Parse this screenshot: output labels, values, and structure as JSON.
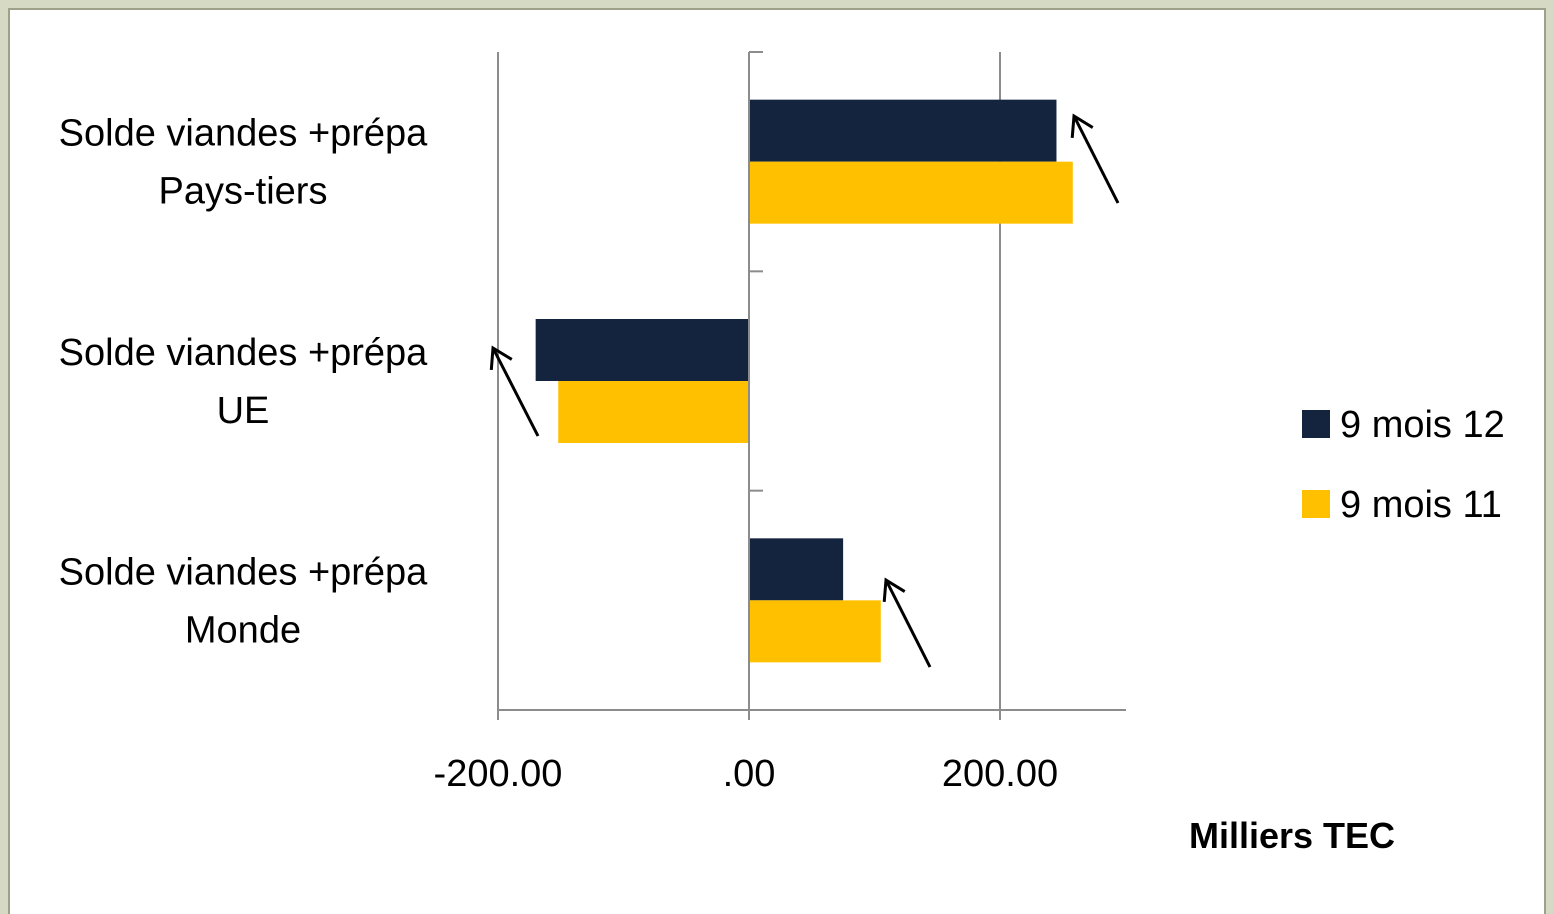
{
  "chart_data": {
    "type": "bar",
    "orientation": "horizontal",
    "categories": [
      [
        "Solde viandes +prépa",
        "Pays-tiers"
      ],
      [
        "Solde viandes +prépa",
        "UE"
      ],
      [
        "Solde viandes +prépa",
        "Monde"
      ]
    ],
    "series": [
      {
        "name": "9 mois 12",
        "color": "#14243f",
        "values": [
          245,
          -170,
          75
        ]
      },
      {
        "name": "9 mois 11",
        "color": "#ffc000",
        "values": [
          258,
          -152,
          105
        ]
      }
    ],
    "xlim": [
      -200,
      300
    ],
    "xticks": [
      {
        "value": -200,
        "label": "-200.00"
      },
      {
        "value": 0,
        "label": ".00"
      },
      {
        "value": 200,
        "label": "200.00"
      }
    ],
    "xlabel": "Milliers TEC",
    "grid": "vertical",
    "legend": "right",
    "annotations": [
      {
        "type": "arrow",
        "category": 0,
        "direction": "up"
      },
      {
        "type": "arrow",
        "category": 1,
        "direction": "up"
      },
      {
        "type": "arrow",
        "category": 2,
        "direction": "up"
      }
    ]
  }
}
